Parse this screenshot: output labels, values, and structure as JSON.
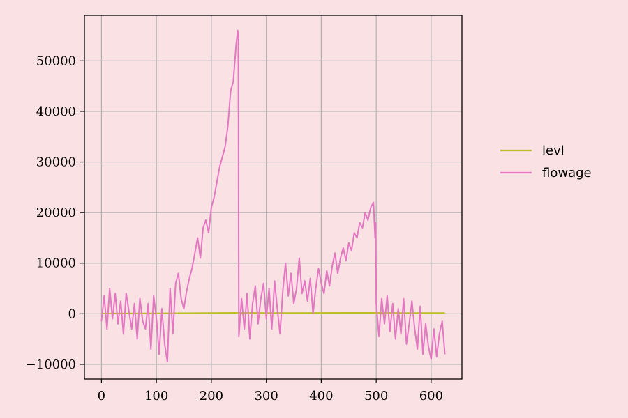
{
  "chart_data": {
    "type": "line",
    "title": "",
    "xlabel": "",
    "ylabel": "",
    "xlim": [
      -31,
      656
    ],
    "ylim": [
      -12900,
      59000
    ],
    "x_ticks": [
      0,
      100,
      200,
      300,
      400,
      500,
      600
    ],
    "x_tick_labels": [
      "0",
      "100",
      "200",
      "300",
      "400",
      "500",
      "600"
    ],
    "y_ticks": [
      -10000,
      0,
      10000,
      20000,
      30000,
      40000,
      50000
    ],
    "y_tick_labels": [
      "−10000",
      "0",
      "10000",
      "20000",
      "30000",
      "40000",
      "50000"
    ],
    "grid": true,
    "legend_position": "right",
    "series": [
      {
        "name": "levl",
        "color": "#bcbd22",
        "x": [
          0,
          50,
          100,
          150,
          200,
          250,
          300,
          350,
          400,
          450,
          500,
          550,
          600,
          625
        ],
        "values": [
          60,
          70,
          90,
          110,
          140,
          180,
          150,
          160,
          170,
          180,
          190,
          160,
          150,
          140
        ]
      },
      {
        "name": "flowage",
        "color": "#e377c2",
        "x": [
          0,
          5,
          10,
          15,
          20,
          25,
          30,
          35,
          40,
          45,
          50,
          55,
          60,
          65,
          70,
          75,
          80,
          85,
          90,
          95,
          100,
          105,
          110,
          115,
          120,
          125,
          130,
          135,
          140,
          145,
          150,
          155,
          160,
          165,
          170,
          175,
          180,
          185,
          190,
          195,
          200,
          205,
          210,
          215,
          220,
          225,
          230,
          235,
          240,
          245,
          248,
          249,
          250,
          255,
          260,
          265,
          270,
          275,
          280,
          285,
          290,
          295,
          300,
          305,
          310,
          315,
          320,
          325,
          330,
          335,
          340,
          345,
          350,
          355,
          360,
          365,
          370,
          375,
          380,
          385,
          390,
          395,
          400,
          405,
          410,
          415,
          420,
          425,
          430,
          435,
          440,
          445,
          450,
          455,
          460,
          465,
          470,
          475,
          480,
          485,
          490,
          495,
          498,
          499,
          500,
          505,
          510,
          515,
          520,
          525,
          530,
          535,
          540,
          545,
          550,
          555,
          560,
          565,
          570,
          575,
          580,
          585,
          590,
          595,
          600,
          605,
          610,
          615,
          620,
          625
        ],
        "values": [
          -1500,
          3500,
          -3000,
          5000,
          -1000,
          4000,
          -2000,
          2500,
          -4000,
          4000,
          500,
          -3000,
          2000,
          -5000,
          3000,
          -1500,
          -3000,
          2000,
          -7000,
          3500,
          -1000,
          -8000,
          1000,
          -6000,
          -9500,
          5000,
          -4000,
          6000,
          8000,
          3000,
          1000,
          4500,
          7000,
          9000,
          12000,
          15000,
          11000,
          17000,
          18500,
          16000,
          21000,
          23000,
          26000,
          29000,
          31000,
          33000,
          37000,
          44000,
          46000,
          53000,
          56000,
          55000,
          -4500,
          3000,
          -3000,
          4000,
          -5000,
          2000,
          5500,
          -2000,
          3000,
          6000,
          -1000,
          5000,
          -3000,
          6500,
          1000,
          -4000,
          4500,
          10000,
          3500,
          8000,
          2000,
          5000,
          11000,
          4000,
          6500,
          2500,
          7000,
          0,
          5000,
          9000,
          6000,
          4000,
          8500,
          5500,
          9500,
          12000,
          8000,
          11000,
          13000,
          10500,
          14000,
          12500,
          16000,
          15000,
          18000,
          17000,
          20000,
          18500,
          21000,
          22000,
          15000,
          18000,
          2000,
          -4500,
          3000,
          -2000,
          3500,
          -3500,
          2000,
          -5000,
          1000,
          -4000,
          3000,
          -6000,
          -2000,
          2500,
          -3000,
          -7000,
          1500,
          -8000,
          -2000,
          -6500,
          -9000,
          -3000,
          -8500,
          -4000,
          -1500,
          -8000
        ]
      }
    ]
  }
}
